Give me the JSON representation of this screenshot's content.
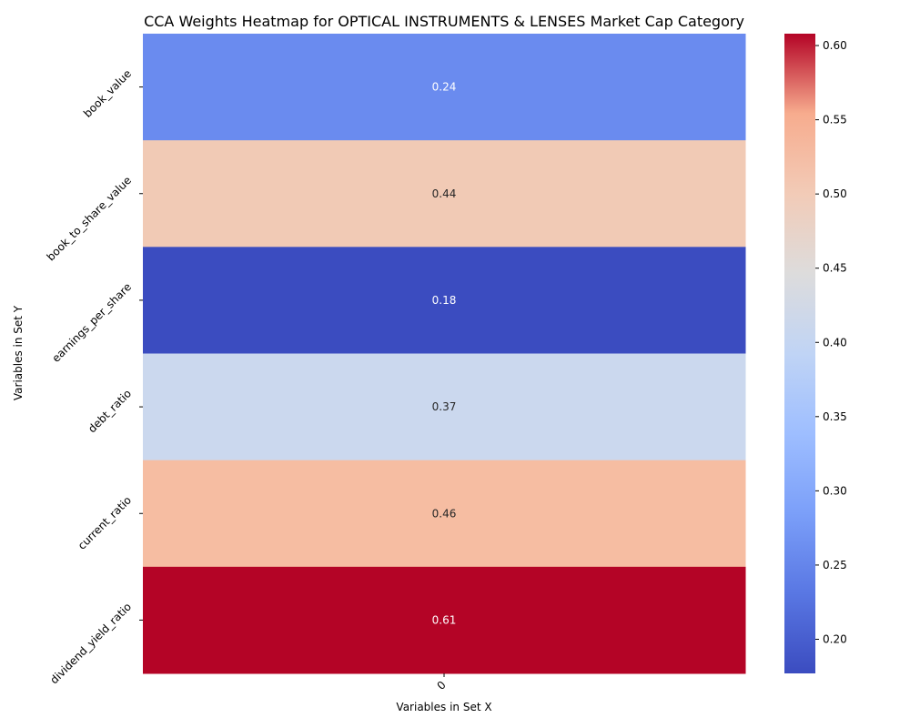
{
  "chart_data": {
    "type": "heatmap",
    "title": "CCA Weights Heatmap for OPTICAL INSTRUMENTS & LENSES Market Cap Category",
    "xlabel": "Variables in Set X",
    "ylabel": "Variables in Set Y",
    "x_categories": [
      "0"
    ],
    "y_categories": [
      "book_value",
      "book_to_share_value",
      "earnings_per_share",
      "debt_ratio",
      "current_ratio",
      "dividend_yield_ratio"
    ],
    "values": [
      [
        0.24
      ],
      [
        0.44
      ],
      [
        0.18
      ],
      [
        0.37
      ],
      [
        0.46
      ],
      [
        0.61
      ]
    ],
    "value_labels": [
      "0.24",
      "0.44",
      "0.18",
      "0.37",
      "0.46",
      "0.61"
    ],
    "colormap": "coolwarm",
    "vmin": 0.177,
    "vmax": 0.608,
    "colorbar_ticks": [
      "0.20",
      "0.25",
      "0.30",
      "0.35",
      "0.40",
      "0.45",
      "0.50",
      "0.55",
      "0.60"
    ],
    "cell_colors": [
      "#6a8bef",
      "#f1cab5",
      "#3b4cc0",
      "#cbd8ee",
      "#f6bda2",
      "#b40426"
    ],
    "label_colors": [
      "#ffffff",
      "#262626",
      "#ffffff",
      "#262626",
      "#262626",
      "#ffffff"
    ]
  }
}
